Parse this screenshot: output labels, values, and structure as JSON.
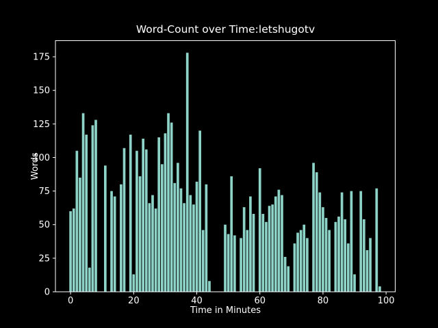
{
  "figure": {
    "background_color": "#000000",
    "foreground_color": "#ffffff",
    "bar_color": "#8dd3c7"
  },
  "chart_data": {
    "type": "bar",
    "title": "Word-Count over Time:letshugotv",
    "xlabel": "Time in Minutes",
    "ylabel": "Words",
    "xlim": [
      -4.8,
      102.9
    ],
    "ylim": [
      0,
      187
    ],
    "grid": false,
    "legend": "none",
    "x_ticks": [
      0,
      20,
      40,
      60,
      80,
      100
    ],
    "y_ticks": [
      0,
      25,
      50,
      75,
      100,
      125,
      150,
      175
    ],
    "bar_width_minutes": 0.8,
    "x": [
      0,
      1,
      2,
      3,
      4,
      5,
      6,
      7,
      8,
      9,
      10,
      11,
      12,
      13,
      14,
      15,
      16,
      17,
      18,
      19,
      20,
      21,
      22,
      23,
      24,
      25,
      26,
      27,
      28,
      29,
      30,
      31,
      32,
      33,
      34,
      35,
      36,
      37,
      38,
      39,
      40,
      41,
      42,
      43,
      44,
      45,
      46,
      47,
      48,
      49,
      50,
      51,
      52,
      53,
      54,
      55,
      56,
      57,
      58,
      59,
      60,
      61,
      62,
      63,
      64,
      65,
      66,
      67,
      68,
      69,
      70,
      71,
      72,
      73,
      74,
      75,
      76,
      77,
      78,
      79,
      80,
      81,
      82,
      83,
      84,
      85,
      86,
      87,
      88,
      89,
      90,
      91,
      92,
      93,
      94,
      95,
      96,
      97,
      98,
      99
    ],
    "values": [
      60,
      62,
      105,
      85,
      133,
      117,
      18,
      124,
      128,
      0,
      0,
      94,
      0,
      75,
      71,
      0,
      80,
      107,
      0,
      117,
      13,
      105,
      86,
      114,
      106,
      66,
      72,
      62,
      115,
      95,
      118,
      133,
      126,
      81,
      96,
      77,
      66,
      178,
      72,
      65,
      82,
      120,
      46,
      80,
      8,
      0,
      0,
      0,
      0,
      50,
      43,
      86,
      42,
      0,
      40,
      63,
      46,
      71,
      58,
      0,
      92,
      58,
      52,
      64,
      65,
      71,
      76,
      72,
      26,
      19,
      0,
      36,
      44,
      46,
      50,
      40,
      0,
      96,
      89,
      74,
      63,
      55,
      46,
      0,
      52,
      56,
      74,
      54,
      36,
      75,
      13,
      0,
      75,
      54,
      31,
      40,
      0,
      77,
      4,
      0
    ]
  }
}
